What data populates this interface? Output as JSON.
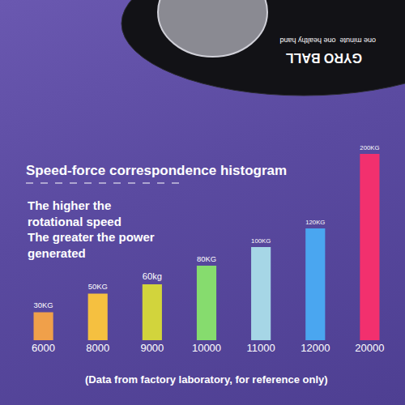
{
  "chart_data": {
    "type": "bar",
    "title": "Speed-force correspondence histogram",
    "subtitle": [
      "The higher the",
      "rotational speed",
      "The greater the power",
      "generated"
    ],
    "note": "(Data from factory laboratory, for reference only)",
    "annotations": [
      "GYRO BALL",
      "one minute  one healthy hand"
    ],
    "categories": [
      "6000",
      "8000",
      "9000",
      "10000",
      "11000",
      "12000",
      "20000"
    ],
    "values": [
      30,
      50,
      60,
      80,
      100,
      120,
      200
    ],
    "value_labels": [
      "30KG",
      "50KG",
      "60kg",
      "80KG",
      "100KG",
      "120KG",
      "200KG"
    ],
    "colors": [
      "#f0a04a",
      "#f5c040",
      "#d2d43c",
      "#86dc6e",
      "#a6d6e6",
      "#4aa6f0",
      "#f2306e"
    ],
    "ylim": [
      0,
      200
    ],
    "data_labels": true,
    "tick_labels": "x",
    "grid": false
  }
}
